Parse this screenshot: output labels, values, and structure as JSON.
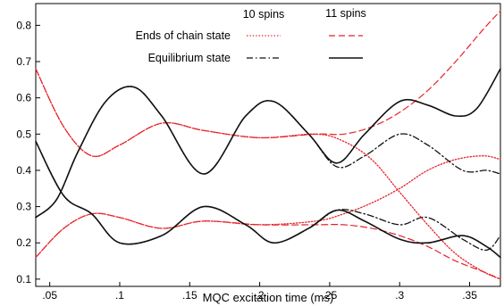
{
  "chart_data": {
    "type": "line",
    "title": "",
    "xlabel": "MQC excitation time (ms)",
    "ylabel": "",
    "xlim": [
      0.04,
      0.372
    ],
    "ylim": [
      0.08,
      0.86
    ],
    "x_ticks": [
      0.05,
      0.1,
      0.15,
      0.2,
      0.25,
      0.3,
      0.35
    ],
    "x_tick_labels": [
      ".05",
      ".1",
      ".15",
      ".2",
      ".25",
      ".3",
      ".35"
    ],
    "y_ticks": [
      0.1,
      0.2,
      0.3,
      0.4,
      0.5,
      0.6,
      0.7,
      0.8
    ],
    "y_tick_labels": [
      "0.1",
      "0.2",
      "0.3",
      "0.4",
      "0.5",
      "0.6",
      "0.7",
      "0.8"
    ],
    "grid": false,
    "legend": {
      "placement": "top-right",
      "column_headers": [
        "10 spins",
        "11 spins"
      ],
      "rows": [
        "Ends of chain state",
        "Equilibrium state"
      ]
    },
    "series": [
      {
        "state": "ends_of_chain",
        "spins": 10,
        "color": "#e8222b",
        "style": "dotted",
        "curve": "upper",
        "x": [
          0.04,
          0.06,
          0.08,
          0.1,
          0.13,
          0.16,
          0.2,
          0.24,
          0.26,
          0.28,
          0.3,
          0.32,
          0.34,
          0.36,
          0.372
        ],
        "y": [
          0.68,
          0.52,
          0.44,
          0.47,
          0.53,
          0.51,
          0.49,
          0.5,
          0.48,
          0.43,
          0.34,
          0.25,
          0.17,
          0.12,
          0.1
        ]
      },
      {
        "state": "ends_of_chain",
        "spins": 10,
        "color": "#e8222b",
        "style": "dotted",
        "curve": "lower",
        "x": [
          0.04,
          0.06,
          0.08,
          0.1,
          0.13,
          0.16,
          0.2,
          0.24,
          0.26,
          0.28,
          0.3,
          0.32,
          0.34,
          0.36,
          0.372
        ],
        "y": [
          0.16,
          0.24,
          0.28,
          0.27,
          0.24,
          0.26,
          0.25,
          0.26,
          0.28,
          0.31,
          0.35,
          0.4,
          0.43,
          0.44,
          0.43
        ]
      },
      {
        "state": "ends_of_chain",
        "spins": 11,
        "color": "#e8222b",
        "style": "dashed",
        "curve": "upper",
        "x": [
          0.04,
          0.06,
          0.08,
          0.1,
          0.13,
          0.16,
          0.2,
          0.24,
          0.26,
          0.28,
          0.3,
          0.32,
          0.34,
          0.36,
          0.372
        ],
        "y": [
          0.68,
          0.52,
          0.44,
          0.47,
          0.53,
          0.51,
          0.49,
          0.5,
          0.5,
          0.52,
          0.56,
          0.62,
          0.7,
          0.79,
          0.84
        ]
      },
      {
        "state": "ends_of_chain",
        "spins": 11,
        "color": "#e8222b",
        "style": "dashed",
        "curve": "lower",
        "x": [
          0.04,
          0.06,
          0.08,
          0.1,
          0.13,
          0.16,
          0.2,
          0.24,
          0.26,
          0.28,
          0.3,
          0.32,
          0.34,
          0.36,
          0.372
        ],
        "y": [
          0.16,
          0.24,
          0.28,
          0.27,
          0.24,
          0.26,
          0.25,
          0.25,
          0.25,
          0.24,
          0.22,
          0.19,
          0.15,
          0.12,
          0.1
        ]
      },
      {
        "state": "equilibrium",
        "spins": 10,
        "color": "#111111",
        "style": "dashdot",
        "curve": "upper",
        "x": [
          0.04,
          0.055,
          0.07,
          0.09,
          0.11,
          0.13,
          0.16,
          0.19,
          0.21,
          0.235,
          0.255,
          0.275,
          0.3,
          0.32,
          0.345,
          0.362,
          0.372
        ],
        "y": [
          0.27,
          0.32,
          0.45,
          0.59,
          0.63,
          0.55,
          0.39,
          0.55,
          0.59,
          0.5,
          0.41,
          0.44,
          0.5,
          0.47,
          0.4,
          0.4,
          0.39
        ]
      },
      {
        "state": "equilibrium",
        "spins": 10,
        "color": "#111111",
        "style": "dashdot",
        "curve": "lower",
        "x": [
          0.04,
          0.06,
          0.08,
          0.1,
          0.13,
          0.16,
          0.19,
          0.21,
          0.235,
          0.255,
          0.275,
          0.3,
          0.32,
          0.345,
          0.362,
          0.372
        ],
        "y": [
          0.48,
          0.33,
          0.28,
          0.2,
          0.22,
          0.3,
          0.25,
          0.2,
          0.24,
          0.29,
          0.28,
          0.25,
          0.27,
          0.21,
          0.18,
          0.22
        ]
      },
      {
        "state": "equilibrium",
        "spins": 11,
        "color": "#111111",
        "style": "solid",
        "curve": "upper",
        "x": [
          0.04,
          0.055,
          0.07,
          0.09,
          0.11,
          0.13,
          0.16,
          0.19,
          0.21,
          0.235,
          0.255,
          0.275,
          0.3,
          0.32,
          0.34,
          0.355,
          0.372
        ],
        "y": [
          0.27,
          0.32,
          0.45,
          0.59,
          0.63,
          0.55,
          0.39,
          0.55,
          0.59,
          0.5,
          0.42,
          0.5,
          0.59,
          0.58,
          0.55,
          0.57,
          0.68
        ]
      },
      {
        "state": "equilibrium",
        "spins": 11,
        "color": "#111111",
        "style": "solid",
        "curve": "lower",
        "x": [
          0.04,
          0.06,
          0.08,
          0.1,
          0.13,
          0.16,
          0.19,
          0.21,
          0.235,
          0.255,
          0.275,
          0.3,
          0.32,
          0.345,
          0.362,
          0.372
        ],
        "y": [
          0.48,
          0.33,
          0.28,
          0.2,
          0.22,
          0.3,
          0.25,
          0.2,
          0.24,
          0.29,
          0.26,
          0.21,
          0.2,
          0.22,
          0.19,
          0.16
        ]
      }
    ]
  }
}
